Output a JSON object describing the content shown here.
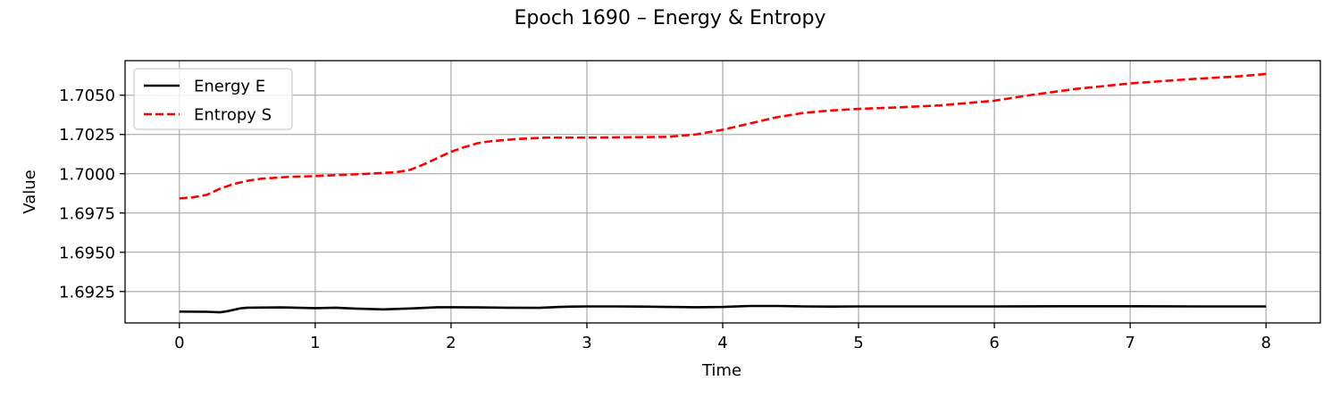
{
  "chart_data": {
    "type": "line",
    "title": "Epoch 1690 – Energy & Entropy",
    "xlabel": "Time",
    "ylabel": "Value",
    "xlim": [
      -0.4,
      8.4
    ],
    "ylim": [
      1.6905,
      1.7072
    ],
    "x_ticks": [
      0,
      1,
      2,
      3,
      4,
      5,
      6,
      7,
      8
    ],
    "y_ticks": [
      1.6925,
      1.695,
      1.6975,
      1.7,
      1.7025,
      1.705
    ],
    "y_tick_labels": [
      "1.6925",
      "1.6950",
      "1.6975",
      "1.7000",
      "1.7025",
      "1.7050"
    ],
    "grid": true,
    "legend_position": "top-left",
    "series": [
      {
        "name": "Energy E",
        "color": "#000000",
        "style": "solid",
        "x": [
          0,
          0.2,
          0.3,
          0.35,
          0.45,
          0.5,
          0.75,
          1.0,
          1.15,
          1.3,
          1.5,
          1.7,
          1.9,
          2.0,
          2.2,
          2.4,
          2.65,
          2.8,
          2.9,
          3.0,
          3.2,
          3.4,
          3.6,
          3.8,
          4.0,
          4.2,
          4.4,
          4.6,
          4.8,
          5.0,
          5.5,
          6.0,
          6.5,
          7.0,
          7.5,
          8.0
        ],
        "y": [
          1.69122,
          1.69121,
          1.69118,
          1.69124,
          1.69143,
          1.69147,
          1.69149,
          1.69144,
          1.69147,
          1.69141,
          1.69136,
          1.69142,
          1.6915,
          1.6915,
          1.69149,
          1.69147,
          1.69146,
          1.69152,
          1.69154,
          1.69155,
          1.69155,
          1.69154,
          1.69152,
          1.6915,
          1.69152,
          1.69158,
          1.69158,
          1.69155,
          1.69154,
          1.69155,
          1.69155,
          1.69155,
          1.69156,
          1.69156,
          1.69155,
          1.69155
        ]
      },
      {
        "name": "Entropy S",
        "color": "#ff0000",
        "style": "dashed",
        "x": [
          0,
          0.1,
          0.2,
          0.3,
          0.4,
          0.5,
          0.6,
          0.8,
          1.0,
          1.2,
          1.4,
          1.6,
          1.7,
          1.8,
          1.9,
          2.0,
          2.1,
          2.2,
          2.3,
          2.5,
          2.7,
          3.0,
          3.3,
          3.6,
          3.8,
          4.0,
          4.2,
          4.4,
          4.6,
          4.8,
          5.0,
          5.3,
          5.6,
          6.0,
          6.3,
          6.6,
          7.0,
          7.4,
          7.8,
          8.0
        ],
        "y": [
          1.69843,
          1.6985,
          1.69865,
          1.69905,
          1.69935,
          1.69955,
          1.69968,
          1.6998,
          1.69985,
          1.69993,
          1.7,
          1.7001,
          1.70025,
          1.7006,
          1.701,
          1.7014,
          1.7017,
          1.70195,
          1.70208,
          1.70222,
          1.7023,
          1.7023,
          1.70232,
          1.70235,
          1.7025,
          1.7028,
          1.7032,
          1.7036,
          1.70388,
          1.70403,
          1.70413,
          1.70423,
          1.70435,
          1.70465,
          1.70505,
          1.7054,
          1.70575,
          1.706,
          1.7062,
          1.70635
        ]
      }
    ]
  }
}
